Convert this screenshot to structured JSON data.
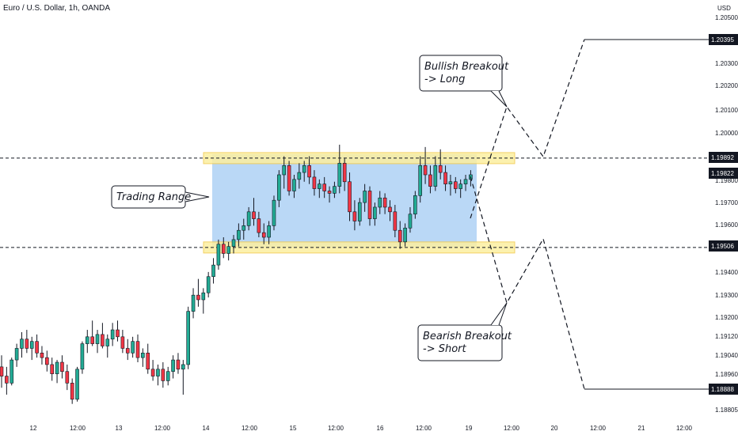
{
  "title": "Euro / U.S. Dollar, 1h, OANDA",
  "currency": "USD",
  "colors": {
    "up": "#22ab94",
    "down": "#f23645",
    "candle_border": "#131722",
    "range_fill": "#b3d4f5",
    "zone_fill": "#fcefa0",
    "zone_border": "#f2c94c"
  },
  "chart_data": {
    "type": "candlestick",
    "symbol": "EURUSD",
    "timeframe": "1h",
    "ylim": [
      1.1885,
      1.2055
    ],
    "y_ticks": [
      "1.20500",
      "1.20400",
      "1.20300",
      "1.20200",
      "1.20100",
      "1.20000",
      "1.19800",
      "1.19700",
      "1.19600",
      "1.19400",
      "1.19300",
      "1.19200",
      "1.19120",
      "1.19040",
      "1.18960",
      "1.18805"
    ],
    "x_ticks": [
      "12",
      "12:00",
      "13",
      "12:00",
      "14",
      "12:00",
      "15",
      "12:00",
      "16",
      "12:00",
      "19",
      "12:00",
      "20",
      "12:00",
      "21",
      "12:00"
    ],
    "price_labels": [
      {
        "value": 1.20395,
        "text": "1.20395"
      },
      {
        "value": 1.19892,
        "text": "1.19892"
      },
      {
        "value": 1.19822,
        "text": "1.19822"
      },
      {
        "value": 1.19506,
        "text": "1.19506"
      },
      {
        "value": 1.18888,
        "text": "1.18888"
      }
    ],
    "resistance": 1.19892,
    "support": 1.19506,
    "candles": [
      [
        1.1899,
        1.1904,
        1.189,
        1.1895
      ],
      [
        1.1895,
        1.1899,
        1.1887,
        1.1892
      ],
      [
        1.1892,
        1.1903,
        1.1891,
        1.1902
      ],
      [
        1.1902,
        1.1909,
        1.1899,
        1.1907
      ],
      [
        1.1907,
        1.1914,
        1.1903,
        1.1911
      ],
      [
        1.1911,
        1.1915,
        1.1905,
        1.1907
      ],
      [
        1.1907,
        1.1912,
        1.1902,
        1.191
      ],
      [
        1.191,
        1.1913,
        1.1903,
        1.1905
      ],
      [
        1.1905,
        1.1908,
        1.19,
        1.1903
      ],
      [
        1.1903,
        1.1906,
        1.1897,
        1.19
      ],
      [
        1.19,
        1.1903,
        1.1893,
        1.1896
      ],
      [
        1.1896,
        1.1902,
        1.1892,
        1.1901
      ],
      [
        1.1901,
        1.1904,
        1.1894,
        1.1897
      ],
      [
        1.1897,
        1.19,
        1.1889,
        1.1892
      ],
      [
        1.1892,
        1.1894,
        1.1883,
        1.1885
      ],
      [
        1.1885,
        1.1899,
        1.1884,
        1.1898
      ],
      [
        1.1898,
        1.191,
        1.1896,
        1.1909
      ],
      [
        1.1909,
        1.1915,
        1.1905,
        1.1912
      ],
      [
        1.1912,
        1.1919,
        1.1908,
        1.1909
      ],
      [
        1.1909,
        1.1915,
        1.1905,
        1.1913
      ],
      [
        1.1913,
        1.1918,
        1.1907,
        1.1908
      ],
      [
        1.1908,
        1.1913,
        1.1903,
        1.1911
      ],
      [
        1.1911,
        1.1918,
        1.1908,
        1.1915
      ],
      [
        1.1915,
        1.1919,
        1.191,
        1.1912
      ],
      [
        1.1912,
        1.1915,
        1.1905,
        1.1907
      ],
      [
        1.1907,
        1.1911,
        1.1902,
        1.1905
      ],
      [
        1.1905,
        1.1912,
        1.1903,
        1.191
      ],
      [
        1.191,
        1.1913,
        1.1901,
        1.1903
      ],
      [
        1.1903,
        1.1907,
        1.1899,
        1.1905
      ],
      [
        1.1905,
        1.1909,
        1.1896,
        1.1898
      ],
      [
        1.1898,
        1.1902,
        1.1893,
        1.1895
      ],
      [
        1.1895,
        1.19,
        1.1891,
        1.1898
      ],
      [
        1.1898,
        1.1901,
        1.189,
        1.1893
      ],
      [
        1.1893,
        1.1899,
        1.1891,
        1.1897
      ],
      [
        1.1897,
        1.1904,
        1.1894,
        1.1902
      ],
      [
        1.1902,
        1.1905,
        1.1896,
        1.1898
      ],
      [
        1.1898,
        1.1902,
        1.1887,
        1.19
      ],
      [
        1.19,
        1.1925,
        1.1898,
        1.1923
      ],
      [
        1.1923,
        1.1933,
        1.192,
        1.193
      ],
      [
        1.193,
        1.1937,
        1.1925,
        1.1928
      ],
      [
        1.1928,
        1.1933,
        1.1922,
        1.1931
      ],
      [
        1.1931,
        1.194,
        1.1929,
        1.1938
      ],
      [
        1.1938,
        1.1946,
        1.1935,
        1.1943
      ],
      [
        1.1943,
        1.1954,
        1.1941,
        1.1952
      ],
      [
        1.1952,
        1.1955,
        1.1946,
        1.1948
      ],
      [
        1.1948,
        1.1953,
        1.1945,
        1.1951
      ],
      [
        1.1951,
        1.1956,
        1.1948,
        1.1954
      ],
      [
        1.1954,
        1.1961,
        1.1951,
        1.1958
      ],
      [
        1.1958,
        1.1963,
        1.1954,
        1.196
      ],
      [
        1.196,
        1.1968,
        1.1958,
        1.1966
      ],
      [
        1.1966,
        1.1972,
        1.196,
        1.1963
      ],
      [
        1.1963,
        1.1966,
        1.1955,
        1.1957
      ],
      [
        1.1957,
        1.1961,
        1.1952,
        1.1955
      ],
      [
        1.1955,
        1.1962,
        1.1952,
        1.196
      ],
      [
        1.196,
        1.1973,
        1.1958,
        1.1971
      ],
      [
        1.1971,
        1.1984,
        1.1968,
        1.1982
      ],
      [
        1.1982,
        1.199,
        1.1976,
        1.1986
      ],
      [
        1.1986,
        1.1988,
        1.1973,
        1.1975
      ],
      [
        1.1975,
        1.1982,
        1.1972,
        1.198
      ],
      [
        1.198,
        1.1987,
        1.1976,
        1.1983
      ],
      [
        1.1983,
        1.1988,
        1.1979,
        1.1986
      ],
      [
        1.1986,
        1.199,
        1.1978,
        1.1981
      ],
      [
        1.1981,
        1.1984,
        1.1973,
        1.1976
      ],
      [
        1.1976,
        1.198,
        1.1972,
        1.1978
      ],
      [
        1.1978,
        1.1981,
        1.1972,
        1.1975
      ],
      [
        1.1975,
        1.1977,
        1.197,
        1.1974
      ],
      [
        1.1974,
        1.1979,
        1.1972,
        1.1977
      ],
      [
        1.1977,
        1.1995,
        1.1974,
        1.1987
      ],
      [
        1.1987,
        1.1989,
        1.1975,
        1.1979
      ],
      [
        1.1979,
        1.1983,
        1.1962,
        1.1966
      ],
      [
        1.1966,
        1.1971,
        1.1958,
        1.1962
      ],
      [
        1.1962,
        1.1972,
        1.196,
        1.197
      ],
      [
        1.197,
        1.1978,
        1.1966,
        1.1975
      ],
      [
        1.1975,
        1.1977,
        1.196,
        1.1963
      ],
      [
        1.1963,
        1.197,
        1.196,
        1.1968
      ],
      [
        1.1968,
        1.1975,
        1.1965,
        1.1972
      ],
      [
        1.1972,
        1.1974,
        1.1965,
        1.1968
      ],
      [
        1.1968,
        1.1971,
        1.1962,
        1.1966
      ],
      [
        1.1966,
        1.1969,
        1.1955,
        1.1958
      ],
      [
        1.1958,
        1.1962,
        1.195,
        1.1953
      ],
      [
        1.1953,
        1.1961,
        1.1951,
        1.1959
      ],
      [
        1.1959,
        1.1968,
        1.1957,
        1.1965
      ],
      [
        1.1965,
        1.1975,
        1.1963,
        1.1973
      ],
      [
        1.1973,
        1.199,
        1.197,
        1.1986
      ],
      [
        1.1986,
        1.1994,
        1.1978,
        1.1982
      ],
      [
        1.1982,
        1.1986,
        1.1974,
        1.1977
      ],
      [
        1.1977,
        1.199,
        1.1975,
        1.1986
      ],
      [
        1.1986,
        1.1993,
        1.198,
        1.1983
      ],
      [
        1.1983,
        1.1986,
        1.1975,
        1.1978
      ],
      [
        1.1978,
        1.1982,
        1.1973,
        1.1979
      ],
      [
        1.1979,
        1.1981,
        1.1974,
        1.1976
      ],
      [
        1.1976,
        1.198,
        1.1972,
        1.1978
      ],
      [
        1.1978,
        1.1982,
        1.1975,
        1.198
      ],
      [
        1.198,
        1.1984,
        1.1977,
        1.1982
      ]
    ],
    "projections": [
      {
        "name": "bullish_breakout",
        "points": [
          [
            0,
            1.1958
          ],
          [
            1,
            1.1985
          ],
          [
            2,
            1.201
          ],
          [
            3,
            1.1989
          ],
          [
            4,
            1.204
          ]
        ]
      },
      {
        "name": "bearish_breakout",
        "points": [
          [
            0,
            1.198
          ],
          [
            1,
            1.1952
          ],
          [
            2,
            1.1928
          ],
          [
            3,
            1.195
          ],
          [
            4,
            1.1889
          ]
        ]
      }
    ],
    "annotations": [
      {
        "name": "trading-range",
        "lines": [
          "Trading Range"
        ]
      },
      {
        "name": "bullish-breakout",
        "lines": [
          "Bullish Breakout",
          "-> Long"
        ]
      },
      {
        "name": "bearish-breakout",
        "lines": [
          "Bearish Breakout",
          "-> Short"
        ]
      }
    ]
  }
}
